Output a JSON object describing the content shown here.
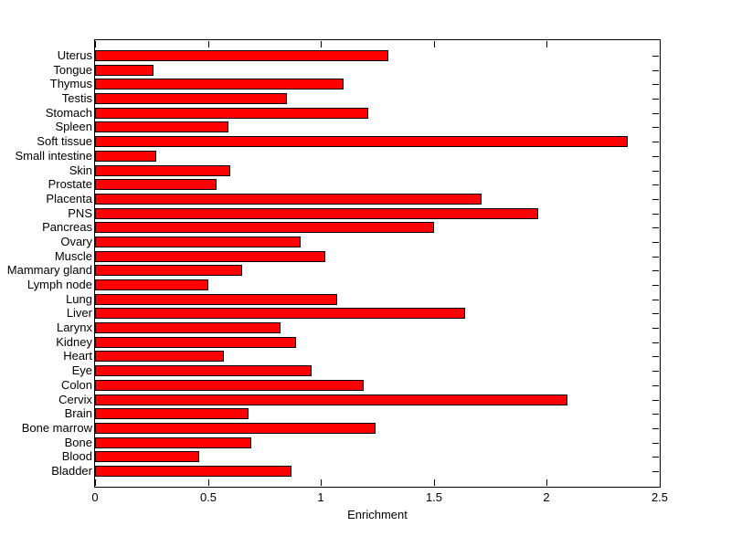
{
  "figure": {
    "background_color": "#ffffff",
    "text_color": "#000000"
  },
  "chart_data": {
    "type": "bar",
    "orientation": "horizontal",
    "title": "",
    "xlabel": "Enrichment",
    "ylabel": "",
    "xlim": [
      0,
      2.5
    ],
    "xticks": [
      0,
      0.5,
      1,
      1.5,
      2,
      2.5
    ],
    "xtick_labels": [
      "0",
      "0.5",
      "1",
      "1.5",
      "2",
      "2.5"
    ],
    "grid": false,
    "legend": null,
    "bar_color": "#ff0000",
    "bar_edge_color": "#000000",
    "axis_color": "#000000",
    "categories": [
      "Uterus",
      "Tongue",
      "Thymus",
      "Testis",
      "Stomach",
      "Spleen",
      "Soft tissue",
      "Small intestine",
      "Skin",
      "Prostate",
      "Placenta",
      "PNS",
      "Pancreas",
      "Ovary",
      "Muscle",
      "Mammary gland",
      "Lymph node",
      "Lung",
      "Liver",
      "Larynx",
      "Kidney",
      "Heart",
      "Eye",
      "Colon",
      "Cervix",
      "Brain",
      "Bone marrow",
      "Bone",
      "Blood",
      "Bladder"
    ],
    "values": [
      1.3,
      0.26,
      1.1,
      0.85,
      1.21,
      0.59,
      2.36,
      0.27,
      0.6,
      0.54,
      1.71,
      1.96,
      1.5,
      0.91,
      1.02,
      0.65,
      0.5,
      1.07,
      1.64,
      0.82,
      0.89,
      0.57,
      0.96,
      1.19,
      2.09,
      0.68,
      1.24,
      0.69,
      0.46,
      0.87
    ]
  }
}
